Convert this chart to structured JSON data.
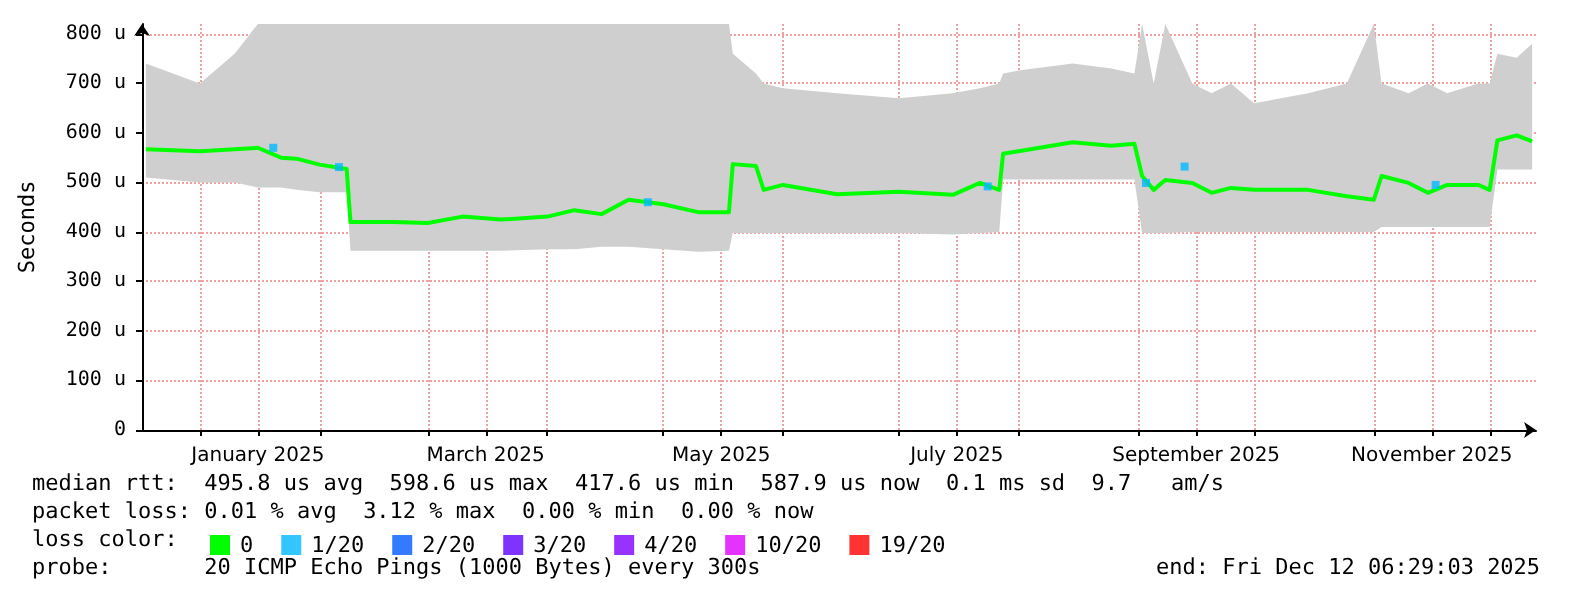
{
  "chart_data": {
    "type": "line",
    "ylabel": "Seconds",
    "xlim": [
      "2024-12-17",
      "2025-12-13"
    ],
    "xticks": [
      {
        "value": "2025-01-01",
        "label": null
      },
      {
        "value": "2025-01-16",
        "label": "January 2025"
      },
      {
        "value": "2025-02-01",
        "label": null
      },
      {
        "value": "2025-03-01",
        "label": null
      },
      {
        "value": "2025-03-16",
        "label": "March 2025"
      },
      {
        "value": "2025-04-01",
        "label": null
      },
      {
        "value": "2025-05-01",
        "label": null
      },
      {
        "value": "2025-05-16",
        "label": "May 2025"
      },
      {
        "value": "2025-06-01",
        "label": null
      },
      {
        "value": "2025-07-01",
        "label": null
      },
      {
        "value": "2025-07-16",
        "label": "July 2025"
      },
      {
        "value": "2025-08-01",
        "label": null
      },
      {
        "value": "2025-09-01",
        "label": null
      },
      {
        "value": "2025-09-16",
        "label": "September 2025"
      },
      {
        "value": "2025-10-01",
        "label": null
      },
      {
        "value": "2025-11-01",
        "label": null
      },
      {
        "value": "2025-11-16",
        "label": "November 2025"
      },
      {
        "value": "2025-12-01",
        "label": null
      }
    ],
    "ylim": [
      0,
      820
    ],
    "yticks": [
      0,
      {
        "value": 100,
        "label": "100 u"
      },
      {
        "value": 200,
        "label": "200 u"
      },
      {
        "value": 300,
        "label": "300 u"
      },
      {
        "value": 400,
        "label": "400 u"
      },
      {
        "value": 500,
        "label": "500 u"
      },
      {
        "value": 600,
        "label": "600 u"
      },
      {
        "value": 700,
        "label": "700 u"
      },
      {
        "value": 800,
        "label": "800 u"
      }
    ],
    "grid": true,
    "legend": "bottom",
    "marker": "none",
    "series": [
      {
        "name": "0",
        "color": "#00ff00",
        "x": [
          "2024-12-18",
          "2025-01-01",
          "2025-01-10",
          "2025-01-16",
          "2025-01-22",
          "2025-01-26",
          "2025-02-01",
          "2025-02-08",
          "2025-02-09",
          "2025-02-20",
          "2025-03-01",
          "2025-03-10",
          "2025-03-20",
          "2025-04-01",
          "2025-04-08",
          "2025-04-15",
          "2025-04-22",
          "2025-05-01",
          "2025-05-10",
          "2025-05-18",
          "2025-05-19",
          "2025-05-25",
          "2025-05-27",
          "2025-06-01",
          "2025-06-15",
          "2025-07-01",
          "2025-07-15",
          "2025-07-22",
          "2025-07-27",
          "2025-07-28",
          "2025-08-01",
          "2025-08-15",
          "2025-08-25",
          "2025-08-31",
          "2025-09-02",
          "2025-09-05",
          "2025-09-08",
          "2025-09-15",
          "2025-09-20",
          "2025-09-25",
          "2025-10-01",
          "2025-10-15",
          "2025-10-25",
          "2025-11-01",
          "2025-11-03",
          "2025-11-10",
          "2025-11-15",
          "2025-11-20",
          "2025-11-28",
          "2025-12-01",
          "2025-12-03",
          "2025-12-08",
          "2025-12-12"
        ],
        "values": [
          567,
          563,
          567,
          570,
          550,
          548,
          536,
          527,
          420,
          420,
          418,
          431,
          425,
          431,
          444,
          436,
          465,
          456,
          440,
          440,
          537,
          533,
          485,
          495,
          476,
          481,
          475,
          499,
          485,
          558,
          563,
          581,
          574,
          578,
          513,
          485,
          505,
          499,
          479,
          489,
          485,
          485,
          472,
          465,
          513,
          499,
          479,
          495,
          495,
          485,
          585,
          595,
          583
        ],
        "lower": [
          510,
          500,
          500,
          490,
          490,
          485,
          480,
          480,
          362,
          362,
          362,
          362,
          362,
          365,
          365,
          370,
          370,
          365,
          360,
          362,
          398,
          398,
          398,
          398,
          398,
          398,
          395,
          398,
          400,
          506,
          506,
          506,
          506,
          506,
          398,
          398,
          398,
          400,
          400,
          400,
          400,
          400,
          400,
          400,
          410,
          410,
          410,
          410,
          410,
          410,
          526,
          526,
          526
        ],
        "upper": [
          740,
          700,
          760,
          820,
          820,
          820,
          820,
          820,
          820,
          820,
          820,
          820,
          820,
          820,
          820,
          820,
          820,
          820,
          820,
          820,
          760,
          720,
          700,
          690,
          680,
          670,
          680,
          690,
          700,
          720,
          726,
          740,
          730,
          720,
          820,
          700,
          820,
          700,
          680,
          700,
          660,
          680,
          700,
          820,
          700,
          680,
          700,
          680,
          700,
          700,
          760,
          752,
          780
        ]
      },
      {
        "name": "1/20",
        "color": "#00b8ff",
        "type": "scatter",
        "marker": "square",
        "x": [
          "2025-01-20",
          "2025-02-06",
          "2025-04-27",
          "2025-07-24",
          "2025-09-03",
          "2025-09-13",
          "2025-11-17"
        ],
        "values": [
          570,
          531,
          460,
          492,
          499,
          532,
          495
        ]
      },
      {
        "name": "2/20",
        "color": "#0059ff",
        "type": "scatter"
      },
      {
        "name": "3/20",
        "color": "#5e00ff",
        "type": "scatter"
      },
      {
        "name": "4/20",
        "color": "#7e00ff",
        "type": "scatter"
      },
      {
        "name": "10/20",
        "color": "#dd00ff",
        "type": "scatter"
      },
      {
        "name": "19/20",
        "color": "#ff0000",
        "type": "scatter"
      }
    ],
    "annotations": [
      "median rtt:  495.8 us avg  598.6 us max  417.6 us min  587.9 us now  0.1 ms sd  9.7   am/s",
      "packet loss: 0.01 % avg  3.12 % max  0.00 % min  0.00 % now",
      "loss color:",
      "probe:       20 ICMP Echo Pings (1000 Bytes) every 300s",
      "end: Fri Dec 12 06:29:03 2025"
    ]
  }
}
